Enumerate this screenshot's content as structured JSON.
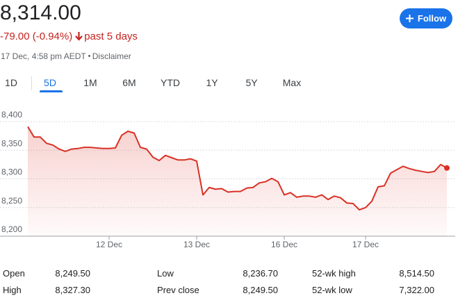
{
  "header": {
    "price": "8,314.00",
    "change": "-79.00 (-0.94%)",
    "period": "past 5 days",
    "timestamp": "17 Dec, 4:58 pm AEDT",
    "disclaimer": "Disclaimer",
    "follow": "Follow"
  },
  "tabs": [
    "1D",
    "5D",
    "1M",
    "6M",
    "YTD",
    "1Y",
    "5Y",
    "Max"
  ],
  "selected_tab": 1,
  "chart_data": {
    "type": "line",
    "color": "#d93025",
    "values": [
      8391,
      8373,
      8373,
      8362,
      8359,
      8352,
      8348,
      8352,
      8353,
      8355,
      8355,
      8354,
      8353,
      8353,
      8354,
      8376,
      8383,
      8380,
      8355,
      8352,
      8338,
      8332,
      8341,
      8337,
      8333,
      8333,
      8335,
      8331,
      8272,
      8285,
      8282,
      8283,
      8277,
      8278,
      8278,
      8284,
      8285,
      8293,
      8295,
      8301,
      8295,
      8272,
      8276,
      8268,
      8270,
      8270,
      8268,
      8272,
      8264,
      8270,
      8267,
      8258,
      8257,
      8246,
      8250,
      8261,
      8286,
      8288,
      8310,
      8316,
      8322,
      8318,
      8315,
      8313,
      8311,
      8313,
      8325,
      8319
    ],
    "xlim": [
      0,
      67
    ],
    "xticks": [
      {
        "value": 13,
        "label": "12 Dec"
      },
      {
        "value": 27,
        "label": "13 Dec"
      },
      {
        "value": 41,
        "label": "16 Dec"
      },
      {
        "value": 54,
        "label": "17 Dec"
      }
    ],
    "ylim": [
      8200,
      8400
    ],
    "yticks": [
      {
        "value": 8200,
        "label": "8,200"
      },
      {
        "value": 8250,
        "label": "8,250"
      },
      {
        "value": 8300,
        "label": "8,300"
      },
      {
        "value": 8350,
        "label": "8,350"
      },
      {
        "value": 8400,
        "label": "8,400"
      }
    ],
    "grid": true
  },
  "stats": {
    "rows": [
      [
        "Open",
        "8,249.50",
        "Low",
        "8,236.70",
        "52-wk high",
        "8,514.50"
      ],
      [
        "High",
        "8,327.30",
        "Prev close",
        "8,249.50",
        "52-wk low",
        "7,322.00"
      ]
    ]
  }
}
